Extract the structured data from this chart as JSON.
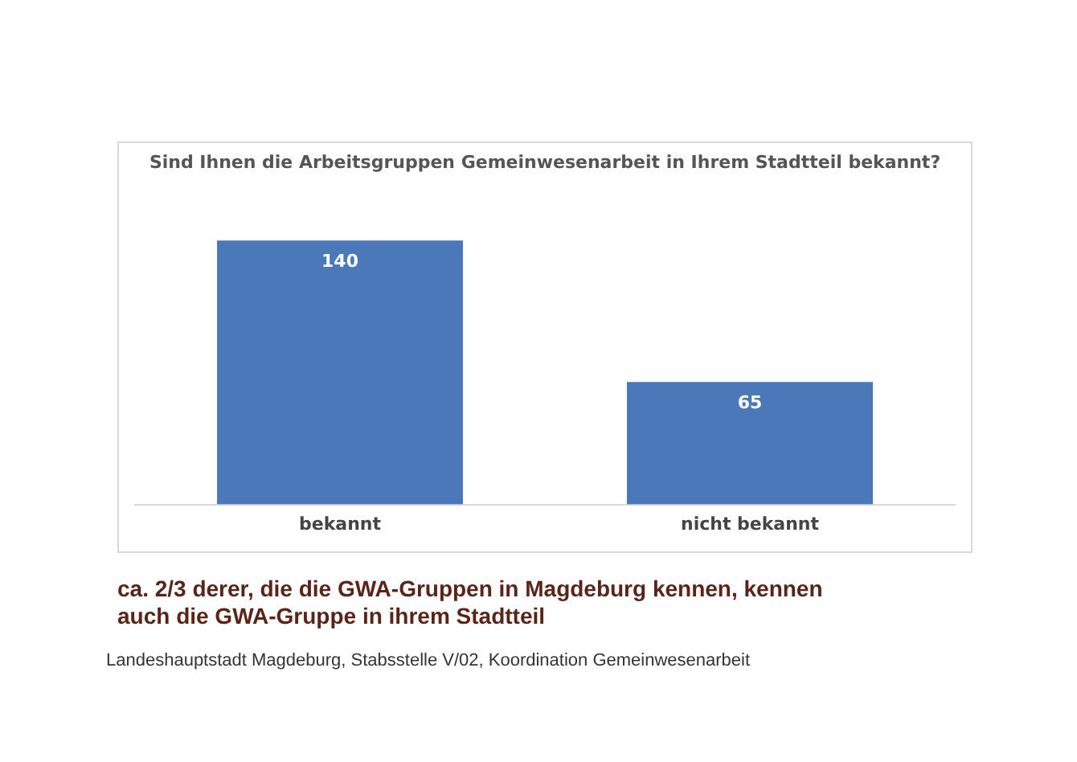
{
  "chart_data": {
    "type": "bar",
    "title": "Sind Ihnen die Arbeitsgruppen Gemeinwesenarbeit in Ihrem Stadtteil bekannt?",
    "categories": [
      "bekannt",
      "nicht bekannt"
    ],
    "values": [
      140,
      65
    ],
    "color": "#4a78b8",
    "data_labels": true,
    "grid": false,
    "legend": false,
    "annotations": [
      "ca. 2/3 derer, die die GWA-Gruppen in Magdeburg kennen, kennen auch die GWA-Gruppe in ihrem Stadtteil",
      "Landeshauptstadt Magdeburg, Stabsstelle V/02, Koordination Gemeinwesenarbeit"
    ]
  }
}
